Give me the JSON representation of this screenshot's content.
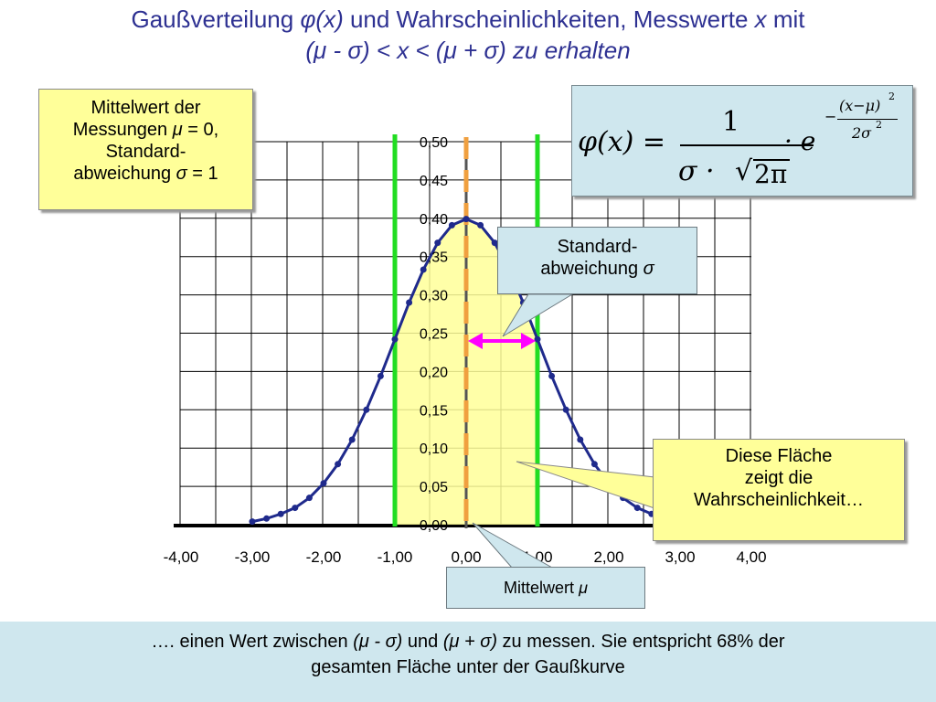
{
  "slide": {
    "title_line1_a": "Gaußverteilung ",
    "title_line1_phi": "φ(x)",
    "title_line1_b": " und Wahrscheinlichkeiten, Messwerte ",
    "title_line1_x": "x",
    "title_line1_c": " mit",
    "title_line2": "(μ - σ) < x < (μ + σ) zu erhalten"
  },
  "params_box": {
    "line1": "Mittelwert der",
    "line2a": "Messungen ",
    "line2_mu": "μ",
    "line2b": " = 0,",
    "line3": "Standard-",
    "line4a": "abweichung ",
    "line4_sigma": "σ",
    "line4b": " = 1"
  },
  "formula": {
    "lhs": "φ(x) =",
    "numerator": "1",
    "denominator_sigma": "σ ·",
    "denominator_root": "2π",
    "times_e": "· e",
    "exp_minus": "−",
    "exp_numerator": "(x−μ)",
    "exp_numerator_power": "2",
    "exp_denominator": "2σ",
    "exp_denominator_power": "2"
  },
  "sigma_callout": {
    "line1": "Standard-",
    "line2a": "abweichung ",
    "line2_sigma": "σ"
  },
  "area_callout": {
    "line1": "Diese Fläche",
    "line2": "zeigt die",
    "line3": "Wahrscheinlichkeit…"
  },
  "mean_callout": {
    "label_a": "Mittelwert ",
    "label_mu": "μ"
  },
  "footer": {
    "line1_a": "…. einen Wert  zwischen  ",
    "line1_mu_minus": "(μ - σ)",
    "line1_b": " und  ",
    "line1_mu_plus": "(μ + σ)",
    "line1_c": " zu messen. Sie entspricht 68% der",
    "line2": "gesamten Fläche unter der Gaußkurve"
  },
  "colors": {
    "title": "#2e3192",
    "curve": "#1f2a8c",
    "sigma_lines": "#22dd22",
    "mean_line": "#f0a040",
    "arrow": "#ff00ff",
    "shaded_area": "#ffff99",
    "callout_yellow": "#ffff99",
    "callout_blue": "#cfe7ee"
  },
  "chart_data": {
    "type": "line",
    "x_tick_labels": [
      "-4,00",
      "-3,00",
      "-2,00",
      "-1,00",
      "0,00",
      "1,00",
      "2,00",
      "3,00",
      "4,00"
    ],
    "y_tick_labels": [
      "0,00",
      "0,05",
      "0,10",
      "0,15",
      "0,20",
      "0,25",
      "0,30",
      "0,35",
      "0,40",
      "0,45",
      "0,50"
    ],
    "xlim": [
      -4,
      4
    ],
    "ylim": [
      0,
      0.5
    ],
    "grid": true,
    "series": [
      {
        "x": [
          -3.0,
          -2.8,
          -2.6,
          -2.4,
          -2.2,
          -2.0,
          -1.8,
          -1.6,
          -1.4,
          -1.2,
          -1.0,
          -0.8,
          -0.6,
          -0.4,
          -0.2,
          0.0,
          0.2,
          0.4,
          0.6,
          0.8,
          1.0,
          1.2,
          1.4,
          1.6,
          1.8,
          2.0,
          2.2,
          2.4,
          2.6,
          2.8,
          3.0
        ],
        "y": [
          0.004,
          0.008,
          0.014,
          0.022,
          0.035,
          0.054,
          0.079,
          0.111,
          0.15,
          0.194,
          0.242,
          0.29,
          0.333,
          0.368,
          0.391,
          0.399,
          0.391,
          0.368,
          0.333,
          0.29,
          0.242,
          0.194,
          0.15,
          0.111,
          0.079,
          0.054,
          0.035,
          0.022,
          0.014,
          0.008,
          0.004
        ]
      }
    ],
    "shaded_range": [
      -1,
      1
    ],
    "mean_line_x": 0,
    "sigma_lines_x": [
      -1,
      1
    ]
  }
}
